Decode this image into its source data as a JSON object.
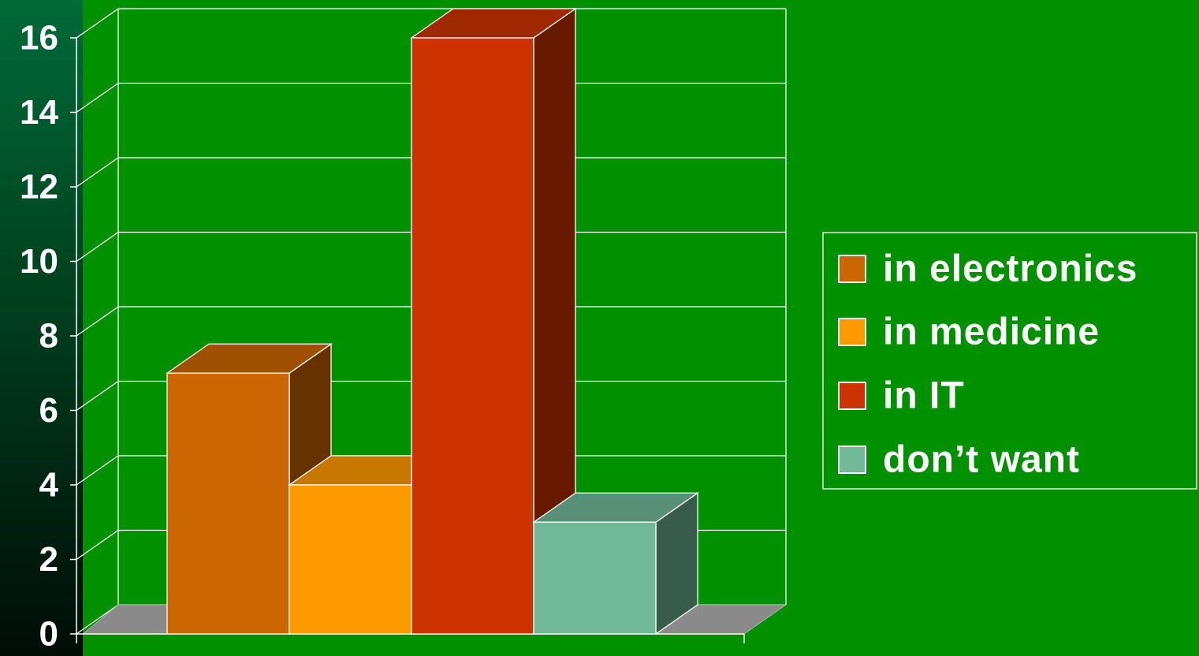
{
  "chart_data": {
    "type": "bar",
    "title": "",
    "xlabel": "",
    "ylabel": "",
    "ylim": [
      0,
      16
    ],
    "yticks": [
      0,
      2,
      4,
      6,
      8,
      10,
      12,
      14,
      16
    ],
    "grid": true,
    "three_d": true,
    "legend_position": "right",
    "series": [
      {
        "name": "in electronics",
        "value": 7,
        "color": "#cc6600"
      },
      {
        "name": "in medicine",
        "value": 4,
        "color": "#ff9900"
      },
      {
        "name": "in IT",
        "value": 16,
        "color": "#cc3300"
      },
      {
        "name": "don’t want",
        "value": 3,
        "color": "#70b898"
      }
    ]
  }
}
